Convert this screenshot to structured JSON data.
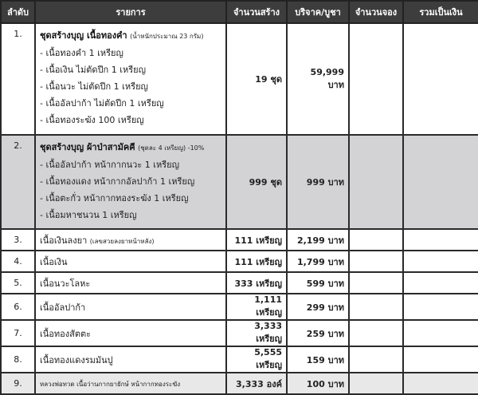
{
  "headers": [
    "ลำดับ",
    "รายการ",
    "จำนวนสร้าง",
    "บริจาค/บูชา",
    "จำนวนจอง",
    "รวมเป็นเงิน"
  ],
  "sets": [
    {
      "no": "1.",
      "title": "ชุดสร้างบุญ เนื้อทองคำ",
      "note": "(น้ำหนักประมาณ 23 กรัม)",
      "items": [
        "- เนื้อทองคำ 1 เหรียญ",
        "- เนื้อเงิน ไม่ตัดปีก 1 เหรียญ",
        "- เนื้อนวะ ไม่ตัดปีก 1 เหรียญ",
        "- เนื้ออัลปาก้า ไม่ตัดปีก 1 เหรียญ",
        "- เนื้อทองระฆัง 100 เหรียญ"
      ],
      "quantity": "19 ชุด",
      "price": "59,999 บาท"
    },
    {
      "no": "2.",
      "title": "ชุดสร้างบุญ ผ้าป่าสามัคคี",
      "note": "(ชุดละ 4 เหรียญ) -10%",
      "items": [
        "- เนื้ออัลปาก้า หน้ากากนวะ 1 เหรียญ",
        "- เนื้อทองแดง หน้ากากอัลปาก้า 1 เหรียญ",
        "- เนื้อตะกั่ว หน้ากากทองระฆัง 1 เหรียญ",
        "- เนื้อมหาชนวน 1 เหรียญ"
      ],
      "quantity": "999 ชุด",
      "price": "999 บาท"
    }
  ],
  "rows": [
    {
      "no": "3.",
      "name": "เนื้อเงินลงยา",
      "note": "(เลขสวยลงยาหน้าหลัง)",
      "quantity": "111 เหรียญ",
      "price": "2,199 บาท"
    },
    {
      "no": "4.",
      "name": "เนื้อเงิน",
      "quantity": "111 เหรียญ",
      "price": "1,799 บาท"
    },
    {
      "no": "5.",
      "name": "เนื้อนวะโลหะ",
      "quantity": "333 เหรียญ",
      "price": "599 บาท"
    },
    {
      "no": "6.",
      "name": "เนื้ออัลปาก้า",
      "quantity": "1,111 เหรียญ",
      "price": "299 บาท"
    },
    {
      "no": "7.",
      "name": "เนื้อทองสัตตะ",
      "quantity": "3,333 เหรียญ",
      "price": "259 บาท"
    },
    {
      "no": "8.",
      "name": "เนื้อทองแดงรมมันปู",
      "quantity": "5,555 เหรียญ",
      "price": "159 บาท"
    },
    {
      "no": "9.",
      "name": "หลวงพ่อทวด เนื้อว่านกากยายักษ์ หน้ากากทองระฆัง",
      "quantity": "3,333 องค์",
      "price": "100 บาท",
      "small": true
    }
  ]
}
